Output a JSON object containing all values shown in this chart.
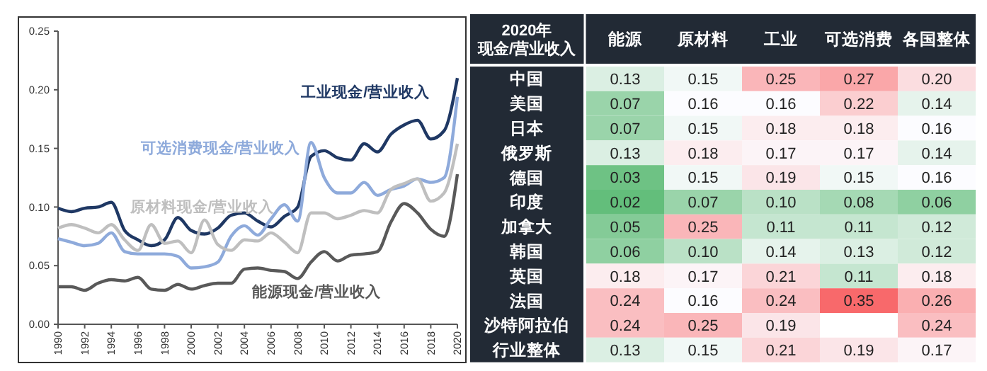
{
  "chart_data": [
    {
      "type": "line",
      "x": [
        1990,
        1991,
        1992,
        1993,
        1994,
        1995,
        1996,
        1997,
        1998,
        1999,
        2000,
        2001,
        2002,
        2003,
        2004,
        2005,
        2006,
        2007,
        2008,
        2009,
        2010,
        2011,
        2012,
        2013,
        2014,
        2015,
        2016,
        2017,
        2018,
        2019,
        2020
      ],
      "series": [
        {
          "name": "工业现金/营业收入",
          "color": "#1f3864",
          "values": [
            0.099,
            0.096,
            0.099,
            0.1,
            0.104,
            0.08,
            0.072,
            0.067,
            0.072,
            0.091,
            0.08,
            0.077,
            0.082,
            0.093,
            0.095,
            0.088,
            0.083,
            0.092,
            0.1,
            0.143,
            0.148,
            0.142,
            0.14,
            0.154,
            0.147,
            0.162,
            0.17,
            0.174,
            0.158,
            0.165,
            0.21
          ]
        },
        {
          "name": "可选消费现金/营业收入",
          "color": "#8eaadb",
          "values": [
            0.073,
            0.07,
            0.067,
            0.069,
            0.078,
            0.062,
            0.06,
            0.06,
            0.06,
            0.058,
            0.048,
            0.049,
            0.053,
            0.075,
            0.084,
            0.076,
            0.09,
            0.102,
            0.088,
            0.155,
            0.125,
            0.112,
            0.112,
            0.121,
            0.11,
            0.115,
            0.118,
            0.124,
            0.121,
            0.125,
            0.194
          ]
        },
        {
          "name": "原材料现金/营业收入",
          "color": "#bfbfbf",
          "values": [
            0.082,
            0.085,
            0.082,
            0.078,
            0.085,
            0.072,
            0.063,
            0.085,
            0.069,
            0.071,
            0.061,
            0.089,
            0.068,
            0.063,
            0.072,
            0.071,
            0.078,
            0.07,
            0.061,
            0.095,
            0.095,
            0.09,
            0.093,
            0.097,
            0.095,
            0.115,
            0.12,
            0.124,
            0.105,
            0.112,
            0.154
          ]
        },
        {
          "name": "能源现金/营业收入",
          "color": "#595959",
          "values": [
            0.032,
            0.032,
            0.029,
            0.035,
            0.038,
            0.037,
            0.04,
            0.03,
            0.029,
            0.034,
            0.03,
            0.033,
            0.035,
            0.035,
            0.047,
            0.048,
            0.046,
            0.045,
            0.039,
            0.053,
            0.062,
            0.054,
            0.059,
            0.06,
            0.062,
            0.087,
            0.103,
            0.095,
            0.081,
            0.075,
            0.128
          ]
        }
      ],
      "xlim": [
        1990,
        2020
      ],
      "xticks": [
        1990,
        1992,
        1994,
        1996,
        1998,
        2000,
        2002,
        2004,
        2006,
        2008,
        2010,
        2012,
        2014,
        2016,
        2018,
        2020
      ],
      "ylim": [
        0,
        0.25
      ],
      "yticks": [
        {
          "value": 0,
          "label": "0.00"
        },
        {
          "value": 0.05,
          "label": "0.05"
        },
        {
          "value": 0.1,
          "label": "0.10"
        },
        {
          "value": 0.15,
          "label": "0.15"
        },
        {
          "value": 0.2,
          "label": "0.20"
        },
        {
          "value": 0.25,
          "label": "0.25"
        }
      ],
      "grid": false,
      "legend": false
    },
    {
      "type": "heatmap",
      "title": "2020年",
      "subtitle": "现金/营业收入",
      "categories": [
        "能源",
        "原材料",
        "工业",
        "可选消费",
        "各国整体"
      ],
      "y_categories": [
        "中国",
        "美国",
        "日本",
        "俄罗斯",
        "德国",
        "印度",
        "加拿大",
        "韩国",
        "英国",
        "法国",
        "沙特阿拉伯",
        "行业整体"
      ],
      "cells": [
        [
          0.13,
          0.15,
          0.25,
          0.27,
          0.2
        ],
        [
          0.07,
          0.16,
          0.16,
          0.22,
          0.14
        ],
        [
          0.07,
          0.15,
          0.18,
          0.18,
          0.16
        ],
        [
          0.13,
          0.18,
          0.17,
          0.17,
          0.14
        ],
        [
          0.03,
          0.15,
          0.19,
          0.15,
          0.16
        ],
        [
          0.02,
          0.07,
          0.1,
          0.08,
          0.06
        ],
        [
          0.05,
          0.25,
          0.11,
          0.11,
          0.12
        ],
        [
          0.06,
          0.1,
          0.14,
          0.13,
          0.12
        ],
        [
          0.18,
          0.17,
          0.21,
          0.11,
          0.18
        ],
        [
          0.24,
          0.16,
          0.24,
          0.35,
          0.26
        ],
        [
          0.24,
          0.25,
          0.19,
          null,
          0.24
        ],
        [
          0.13,
          0.15,
          0.21,
          0.19,
          0.17
        ]
      ],
      "cell_labels": [
        [
          "0.13",
          "0.15",
          "0.25",
          "0.27",
          "0.20"
        ],
        [
          "0.07",
          "0.16",
          "0.16",
          "0.22",
          "0.14"
        ],
        [
          "0.07",
          "0.15",
          "0.18",
          "0.18",
          "0.16"
        ],
        [
          "0.13",
          "0.18",
          "0.17",
          "0.17",
          "0.14"
        ],
        [
          "0.03",
          "0.15",
          "0.19",
          "0.15",
          "0.16"
        ],
        [
          "0.02",
          "0.07",
          "0.10",
          "0.08",
          "0.06"
        ],
        [
          "0.05",
          "0.25",
          "0.11",
          "0.11",
          "0.12"
        ],
        [
          "0.06",
          "0.10",
          "0.14",
          "0.13",
          "0.12"
        ],
        [
          "0.18",
          "0.17",
          "0.21",
          "0.11",
          "0.18"
        ],
        [
          "0.24",
          "0.16",
          "0.24",
          "0.35",
          "0.26"
        ],
        [
          "0.24",
          "0.25",
          "0.19",
          null,
          "0.24"
        ],
        [
          "0.13",
          "0.15",
          "0.21",
          "0.19",
          "0.17"
        ]
      ]
    }
  ]
}
